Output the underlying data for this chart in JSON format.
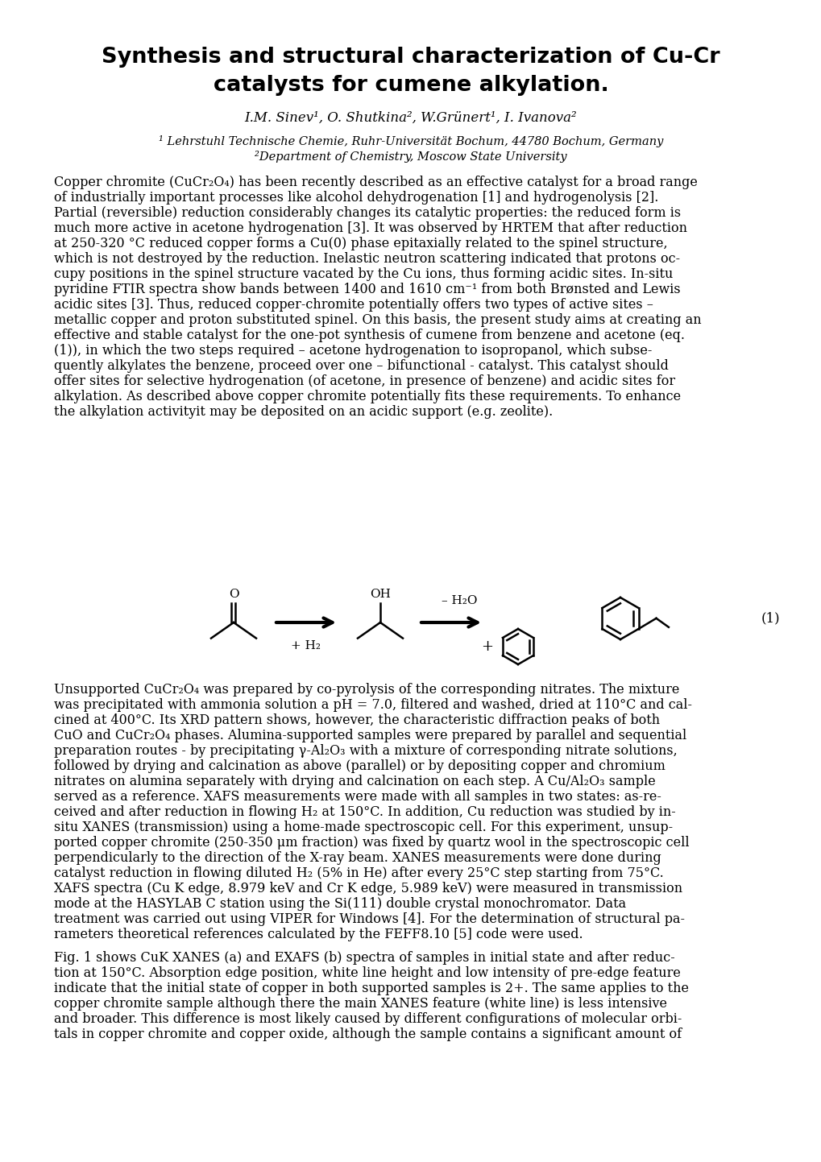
{
  "title_line1": "Synthesis and structural characterization of Cu-Cr",
  "title_line2": "catalysts for cumene alkylation.",
  "authors": "I.M. Sinev¹, O. Shutkina², W.Grünert¹, I. Ivanova²",
  "affil1": "¹ Lehrstuhl Technische Chemie, Ruhr-Universität Bochum, 44780 Bochum, Germany",
  "affil2": "²Department of Chemistry, Moscow State University",
  "paragraph1_lines": [
    "Copper chromite (CuCr₂O₄) has been recently described as an effective catalyst for a broad range",
    "of industrially important processes like alcohol dehydrogenation [1] and hydrogenolysis [2].",
    "Partial (reversible) reduction considerably changes its catalytic properties: the reduced form is",
    "much more active in acetone hydrogenation [3]. It was observed by HRTEM that after reduction",
    "at 250-320 °C reduced copper forms a Cu(0) phase epitaxially related to the spinel structure,",
    "which is not destroyed by the reduction. Inelastic neutron scattering indicated that protons oc-",
    "cupy positions in the spinel structure vacated by the Cu ions, thus forming acidic sites. In-situ",
    "pyridine FTIR spectra show bands between 1400 and 1610 cm⁻¹ from both Brønsted and Lewis",
    "acidic sites [3]. Thus, reduced copper-chromite potentially offers two types of active sites –",
    "metallic copper and proton substituted spinel. On this basis, the present study aims at creating an",
    "effective and stable catalyst for the one-pot synthesis of cumene from benzene and acetone (eq.",
    "(1)), in which the two steps required – acetone hydrogenation to isopropanol, which subse-",
    "quently alkylates the benzene, proceed over one – bifunctional - catalyst. This catalyst should",
    "offer sites for selective hydrogenation (of acetone, in presence of benzene) and acidic sites for",
    "alkylation. As described above copper chromite potentially fits these requirements. To enhance",
    "the alkylation activityit may be deposited on an acidic support (e.g. zeolite)."
  ],
  "paragraph2_lines": [
    "Unsupported CuCr₂O₄ was prepared by co-pyrolysis of the corresponding nitrates. The mixture",
    "was precipitated with ammonia solution a pH = 7.0, filtered and washed, dried at 110°C and cal-",
    "cined at 400°C. Its XRD pattern shows, however, the characteristic diffraction peaks of both",
    "CuO and CuCr₂O₄ phases. Alumina-supported samples were prepared by parallel and sequential",
    "preparation routes - by precipitating γ-Al₂O₃ with a mixture of corresponding nitrate solutions,",
    "followed by drying and calcination as above (parallel) or by depositing copper and chromium",
    "nitrates on alumina separately with drying and calcination on each step. A Cu/Al₂O₃ sample",
    "served as a reference. XAFS measurements were made with all samples in two states: as-re-",
    "ceived and after reduction in flowing H₂ at 150°C. In addition, Cu reduction was studied by in-",
    "situ XANES (transmission) using a home-made spectroscopic cell. For this experiment, unsup-",
    "ported copper chromite (250-350 μm fraction) was fixed by quartz wool in the spectroscopic cell",
    "perpendicularly to the direction of the X-ray beam. XANES measurements were done during",
    "catalyst reduction in flowing diluted H₂ (5% in He) after every 25°C step starting from 75°C.",
    "XAFS spectra (Cu K edge, 8.979 keV and Cr K edge, 5.989 keV) were measured in transmission",
    "mode at the HASYLAB C station using the Si(111) double crystal monochromator. Data",
    "treatment was carried out using VIPER for Windows [4]. For the determination of structural pa-",
    "rameters theoretical references calculated by the FEFF8.10 [5] code were used."
  ],
  "paragraph3_lines": [
    "Fig. 1 shows CuK XANES (a) and EXAFS (b) spectra of samples in initial state and after reduc-",
    "tion at 150°C. Absorption edge position, white line height and low intensity of pre-edge feature",
    "indicate that the initial state of copper in both supported samples is 2+. The same applies to the",
    "copper chromite sample although there the main XANES feature (white line) is less intensive",
    "and broader. This difference is most likely caused by different configurations of molecular orbi-",
    "tals in copper chromite and copper oxide, although the sample contains a significant amount of"
  ],
  "background_color": "#ffffff",
  "text_color": "#000000"
}
